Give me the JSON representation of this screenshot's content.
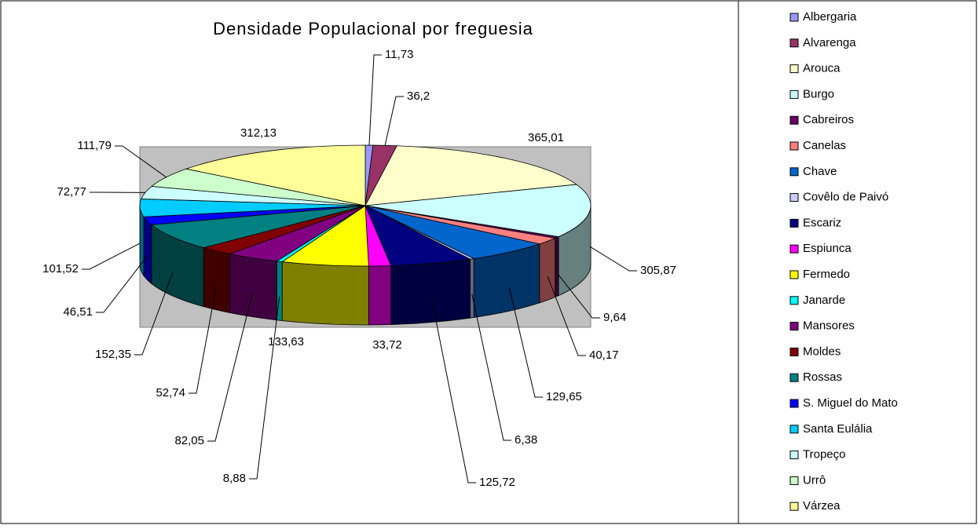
{
  "chart_data": {
    "type": "pie3d",
    "title": "Densidade Populacional por freguesia",
    "categories": [
      "Albergaria",
      "Alvarenga",
      "Arouca",
      "Burgo",
      "Cabreiros",
      "Canelas",
      "Chave",
      "Covêlo de Paivó",
      "Escariz",
      "Espiunca",
      "Fermedo",
      "Janarde",
      "Mansores",
      "Moldes",
      "Rossas",
      "S. Miguel do Mato",
      "Santa Eulália",
      "Tropeço",
      "Urrô",
      "Várzea"
    ],
    "values": [
      11.73,
      36.2,
      365.01,
      305.87,
      9.64,
      40.17,
      129.65,
      6.38,
      125.72,
      33.72,
      133.63,
      8.88,
      82.05,
      52.74,
      152.35,
      46.51,
      101.52,
      72.77,
      111.79,
      312.13
    ],
    "value_labels": [
      "11,73",
      "36,2",
      "365,01",
      "305,87",
      "9,64",
      "40,17",
      "129,65",
      "6,38",
      "125,72",
      "33,72",
      "133,63",
      "8,88",
      "82,05",
      "52,74",
      "152,35",
      "46,51",
      "101,52",
      "72,77",
      "111,79",
      "312,13"
    ],
    "colors": [
      "#9999FF",
      "#993366",
      "#FFFFCC",
      "#CCFFFF",
      "#660066",
      "#FF8080",
      "#0066CC",
      "#CCCCFF",
      "#000080",
      "#FF00FF",
      "#FFFF00",
      "#00FFFF",
      "#800080",
      "#800000",
      "#008080",
      "#0000FF",
      "#00CCFF",
      "#CCFFFF",
      "#CCFFCC",
      "#FFFF99"
    ],
    "legend": "right"
  }
}
